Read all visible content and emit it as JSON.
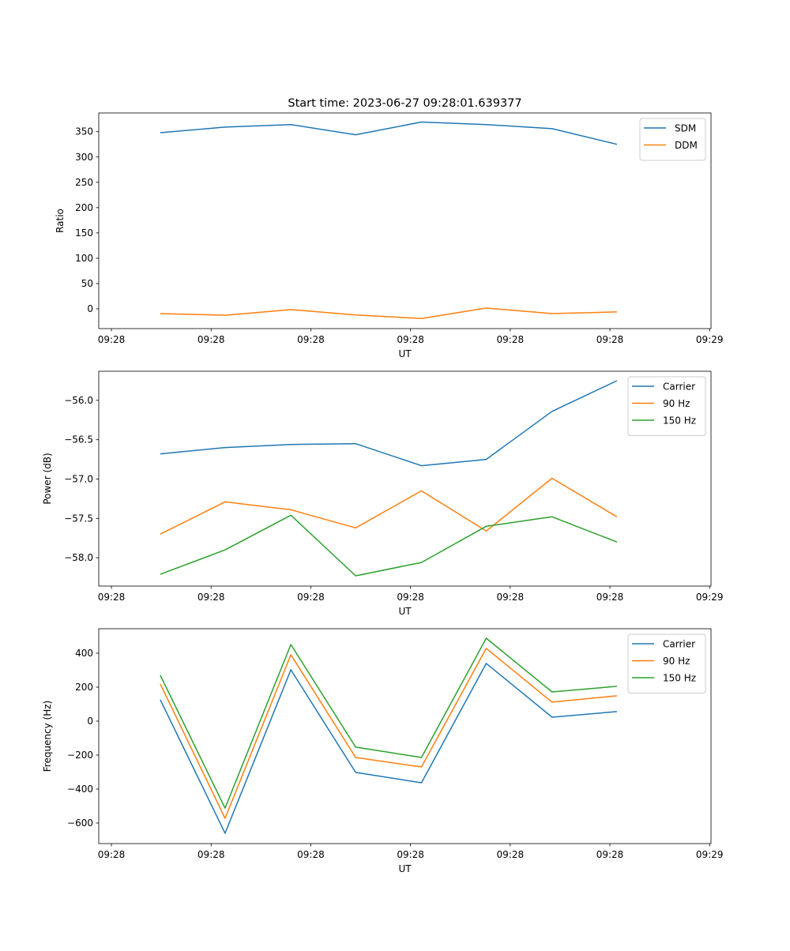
{
  "chart_data": [
    {
      "type": "line",
      "title": "Start time: 2023-06-27 09:28:01.639377",
      "xlabel": "UT",
      "ylabel": "Ratio",
      "x_unit": "seconds after 09:28:00",
      "x": [
        4.9,
        11.4,
        18.0,
        24.5,
        31.1,
        37.6,
        44.2,
        50.7
      ],
      "xlim": [
        -1.27,
        60.14
      ],
      "x_ticks": [
        0,
        10,
        20,
        30,
        40,
        50,
        60
      ],
      "x_tick_labels": [
        "09:28",
        "09:28",
        "09:28",
        "09:28",
        "09:28",
        "09:28",
        "09:29"
      ],
      "ylim": [
        -39,
        387
      ],
      "y_ticks": [
        0,
        50,
        100,
        150,
        200,
        250,
        300,
        350
      ],
      "y_tick_labels": [
        "0",
        "50",
        "100",
        "150",
        "200",
        "250",
        "300",
        "350"
      ],
      "legend": "top-right",
      "series": [
        {
          "name": "SDM",
          "color": "#1f77b4",
          "values": [
            348,
            359,
            364,
            344,
            369,
            364,
            356,
            325
          ]
        },
        {
          "name": "DDM",
          "color": "#ff7f0e",
          "values": [
            -9.4,
            -12.6,
            -1.6,
            -12,
            -19,
            1.6,
            -9.4,
            -6
          ]
        }
      ]
    },
    {
      "type": "line",
      "title": "",
      "xlabel": "UT",
      "ylabel": "Power (dB)",
      "x_unit": "seconds after 09:28:00",
      "x": [
        4.9,
        11.4,
        18.0,
        24.5,
        31.1,
        37.6,
        44.2,
        50.7
      ],
      "xlim": [
        -1.27,
        60.14
      ],
      "x_ticks": [
        0,
        10,
        20,
        30,
        40,
        50,
        60
      ],
      "x_tick_labels": [
        "09:28",
        "09:28",
        "09:28",
        "09:28",
        "09:28",
        "09:28",
        "09:29"
      ],
      "ylim": [
        -58.36,
        -55.63
      ],
      "y_ticks": [
        -58.0,
        -57.5,
        -57.0,
        -56.5,
        -56.0
      ],
      "y_tick_labels": [
        "−58.0",
        "−57.5",
        "−57.0",
        "−56.5",
        "−56.0"
      ],
      "legend": "top-right",
      "series": [
        {
          "name": "Carrier",
          "color": "#1f77b4",
          "values": [
            -56.68,
            -56.6,
            -56.56,
            -56.55,
            -56.83,
            -56.75,
            -56.14,
            -55.75
          ]
        },
        {
          "name": "90 Hz",
          "color": "#ff7f0e",
          "values": [
            -57.7,
            -57.29,
            -57.39,
            -57.62,
            -57.15,
            -57.66,
            -56.99,
            -57.48
          ]
        },
        {
          "name": "150 Hz",
          "color": "#2ca02c",
          "values": [
            -58.21,
            -57.9,
            -57.46,
            -58.23,
            -58.06,
            -57.6,
            -57.48,
            -57.8
          ]
        }
      ]
    },
    {
      "type": "line",
      "title": "",
      "xlabel": "UT",
      "ylabel": "Frequency (Hz)",
      "x_unit": "seconds after 09:28:00",
      "x": [
        4.9,
        11.4,
        18.0,
        24.5,
        31.1,
        37.6,
        44.2,
        50.7
      ],
      "xlim": [
        -1.27,
        60.14
      ],
      "x_ticks": [
        0,
        10,
        20,
        30,
        40,
        50,
        60
      ],
      "x_tick_labels": [
        "09:28",
        "09:28",
        "09:28",
        "09:28",
        "09:28",
        "09:28",
        "09:29"
      ],
      "ylim": [
        -721,
        544
      ],
      "y_ticks": [
        -600,
        -400,
        -200,
        0,
        200,
        400
      ],
      "y_tick_labels": [
        "−600",
        "−400",
        "−200",
        "0",
        "200",
        "400"
      ],
      "legend": "top-right",
      "series": [
        {
          "name": "Carrier",
          "color": "#1f77b4",
          "values": [
            126,
            -660,
            302,
            -302,
            -363,
            340,
            23,
            56
          ]
        },
        {
          "name": "90 Hz",
          "color": "#ff7f0e",
          "values": [
            219,
            -572,
            391,
            -214,
            -270,
            428,
            112,
            149
          ]
        },
        {
          "name": "150 Hz",
          "color": "#2ca02c",
          "values": [
            270,
            -512,
            451,
            -153,
            -214,
            488,
            172,
            205
          ]
        }
      ]
    }
  ]
}
